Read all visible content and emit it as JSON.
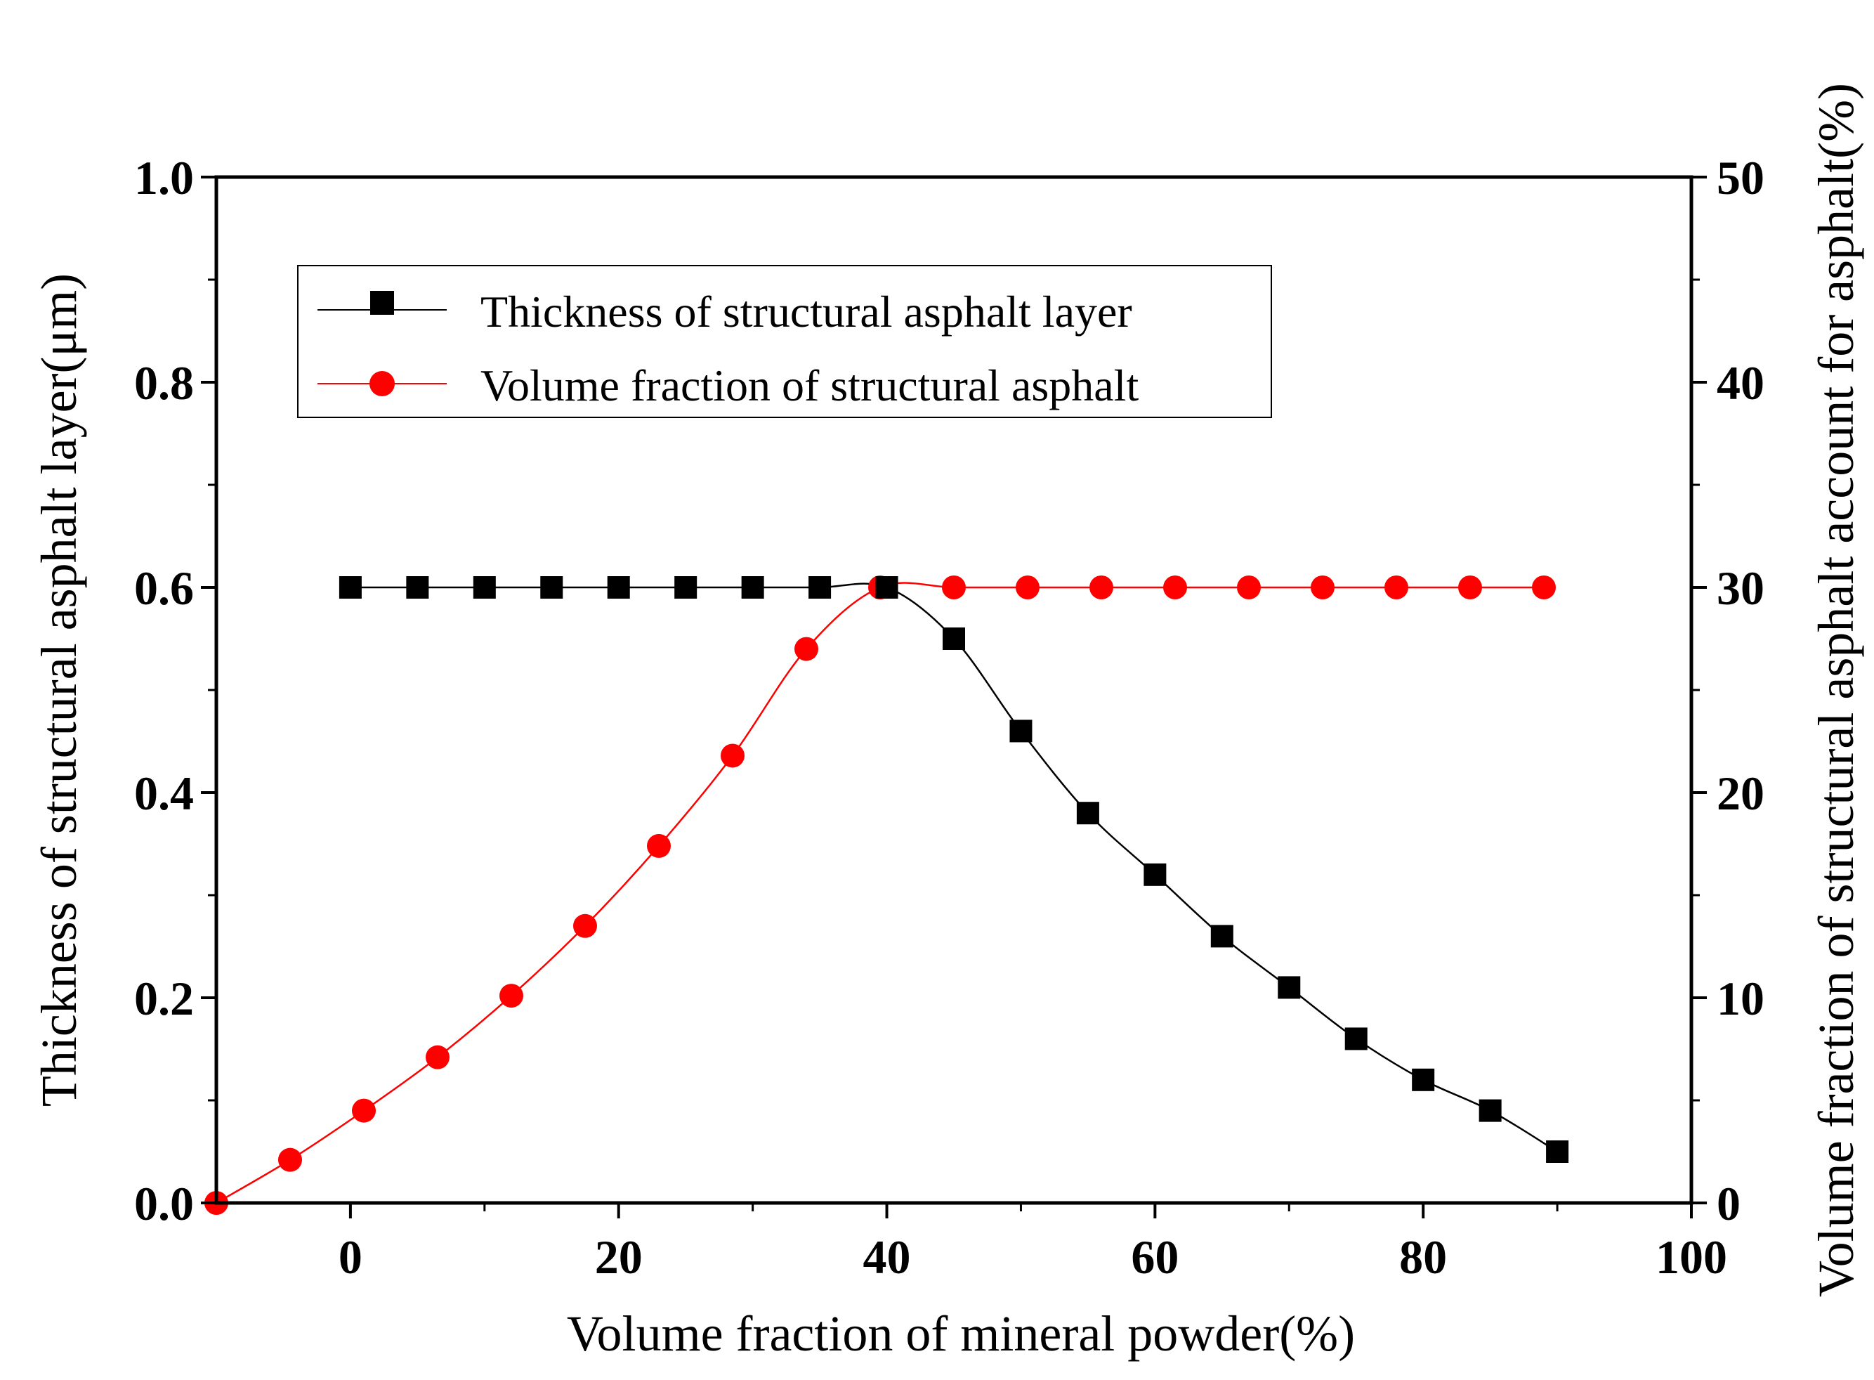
{
  "chart_data": {
    "type": "line",
    "title": "",
    "xlabel": "Volume fraction of mineral powder(%)",
    "ylabel": "Thickness of structural asphalt layer(μm)",
    "y2label": "Volume fraction of structural asphalt account for asphalt(%)",
    "xlim": [
      -10,
      100
    ],
    "ylim": [
      0,
      1.0
    ],
    "y2lim": [
      0,
      50
    ],
    "x_ticks": [
      0,
      20,
      40,
      60,
      80,
      100
    ],
    "y_ticks": [
      0.0,
      0.2,
      0.4,
      0.6,
      0.8,
      1.0
    ],
    "y2_ticks": [
      0,
      10,
      20,
      30,
      40,
      50
    ],
    "x_tick_labels": [
      "0",
      "20",
      "40",
      "60",
      "80",
      "100"
    ],
    "y_tick_labels": [
      "0.0",
      "0.2",
      "0.4",
      "0.6",
      "0.8",
      "1.0"
    ],
    "y2_tick_labels": [
      "0",
      "10",
      "20",
      "30",
      "40",
      "50"
    ],
    "grid": false,
    "legend_position": "top-left",
    "series": [
      {
        "name": "Thickness of structural asphalt layer",
        "axis": "left",
        "marker": "square",
        "color": "#000000",
        "x": [
          0,
          5,
          10,
          15,
          20,
          25,
          30,
          35,
          40,
          45,
          50,
          55,
          60,
          65,
          70,
          75,
          80,
          85,
          90
        ],
        "values": [
          0.6,
          0.6,
          0.6,
          0.6,
          0.6,
          0.6,
          0.6,
          0.6,
          0.6,
          0.55,
          0.46,
          0.38,
          0.32,
          0.26,
          0.21,
          0.16,
          0.12,
          0.09,
          0.05
        ]
      },
      {
        "name": "Volume fraction of structural asphalt",
        "axis": "right",
        "marker": "circle",
        "color": "#ff0000",
        "x": [
          -10,
          -4.5,
          1.0,
          6.5,
          12.0,
          17.5,
          23.0,
          28.5,
          34.0,
          39.5,
          45.0,
          50.5,
          56.0,
          61.5,
          67.0,
          72.5,
          78.0,
          83.5,
          89.0
        ],
        "values": [
          0.0,
          2.1,
          4.5,
          7.1,
          10.1,
          13.5,
          17.4,
          21.8,
          27.0,
          30.0,
          30.0,
          30.0,
          30.0,
          30.0,
          30.0,
          30.0,
          30.0,
          30.0,
          30.0
        ]
      }
    ]
  }
}
